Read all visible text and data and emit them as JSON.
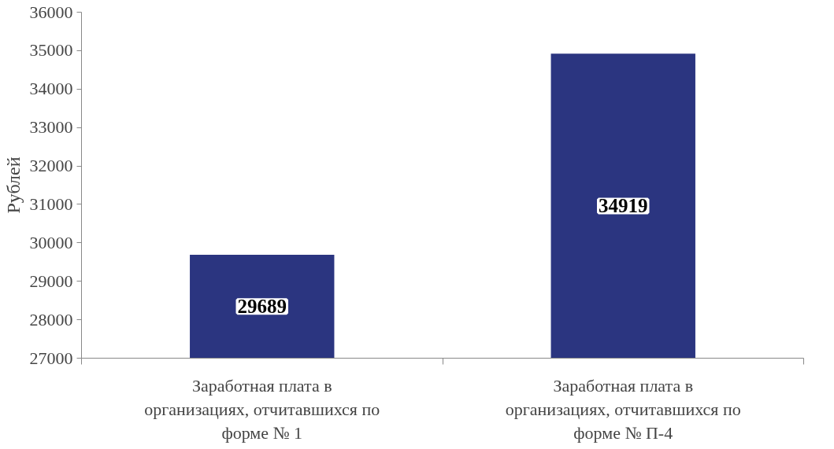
{
  "chart_data": {
    "type": "bar",
    "ylabel": "Рублей",
    "categories": [
      "Заработная плата в организациях, отчитавшихся по форме № 1",
      "Заработная плата в организациях, отчитавшихся по форме № П-4"
    ],
    "values": [
      29689,
      34919
    ],
    "color": "#2b3580",
    "data_labels": true,
    "ylim": [
      27000,
      36000
    ],
    "yticks": [
      27000,
      28000,
      29000,
      30000,
      31000,
      32000,
      33000,
      34000,
      35000,
      36000
    ],
    "grid": false
  }
}
